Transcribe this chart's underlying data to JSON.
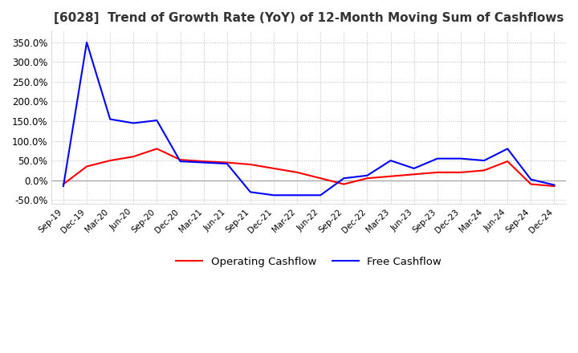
{
  "title": "[6028]  Trend of Growth Rate (YoY) of 12-Month Moving Sum of Cashflows",
  "title_fontsize": 11,
  "ylim": [
    -0.6,
    3.8
  ],
  "yticks": [
    -0.5,
    0.0,
    0.5,
    1.0,
    1.5,
    2.0,
    2.5,
    3.0,
    3.5
  ],
  "ytick_labels": [
    "-50.0%",
    "0.0%",
    "50.0%",
    "100.0%",
    "150.0%",
    "200.0%",
    "250.0%",
    "300.0%",
    "350.0%"
  ],
  "x_labels": [
    "Sep-19",
    "Dec-19",
    "Mar-20",
    "Jun-20",
    "Sep-20",
    "Dec-20",
    "Mar-21",
    "Jun-21",
    "Sep-21",
    "Dec-21",
    "Mar-22",
    "Jun-22",
    "Sep-22",
    "Dec-22",
    "Mar-23",
    "Jun-23",
    "Sep-23",
    "Dec-23",
    "Mar-24",
    "Jun-24",
    "Sep-24",
    "Dec-24"
  ],
  "operating_cashflow": [
    -0.1,
    0.35,
    0.5,
    0.6,
    0.8,
    0.52,
    0.48,
    0.45,
    0.4,
    0.3,
    0.2,
    0.05,
    -0.1,
    0.05,
    0.1,
    0.15,
    0.2,
    0.2,
    0.25,
    0.48,
    -0.1,
    -0.15
  ],
  "free_cashflow": [
    -0.15,
    3.5,
    1.55,
    1.45,
    1.52,
    0.48,
    0.45,
    0.42,
    -0.3,
    -0.38,
    -0.38,
    -0.38,
    0.05,
    0.12,
    0.5,
    0.3,
    0.55,
    0.55,
    0.5,
    0.8,
    0.02,
    -0.12
  ],
  "op_color": "#ff0000",
  "free_color": "#0000ff",
  "background_color": "#ffffff",
  "grid_color": "#bbbbbb",
  "legend_labels": [
    "Operating Cashflow",
    "Free Cashflow"
  ]
}
